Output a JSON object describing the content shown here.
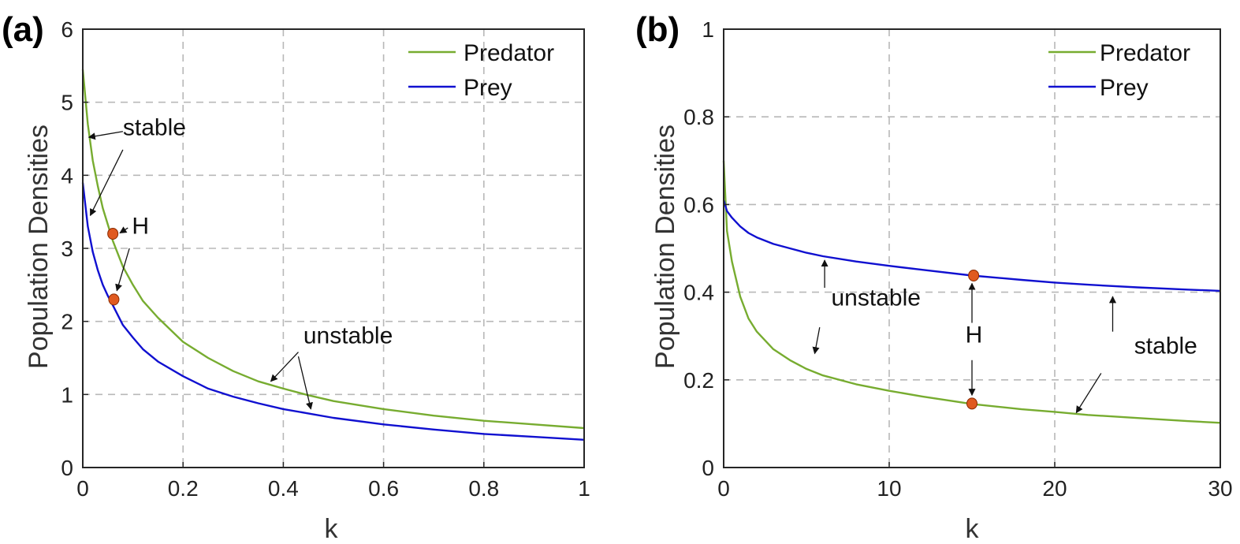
{
  "colors": {
    "predator": "#77ac30",
    "prey": "#1010d0",
    "hopf": "#e05a20",
    "hopf_edge": "#8a2a00"
  },
  "chart_data": [
    {
      "type": "line",
      "panel_label": "(a)",
      "xlabel": "k",
      "ylabel": "Population Densities",
      "xlim": [
        0,
        1
      ],
      "ylim": [
        0,
        6
      ],
      "xticks": [
        0,
        0.2,
        0.4,
        0.6,
        0.8,
        1
      ],
      "xtick_labels": [
        "0",
        "0.2",
        "0.4",
        "0.6",
        "0.8",
        "1"
      ],
      "yticks": [
        0,
        1,
        2,
        3,
        4,
        5,
        6
      ],
      "ytick_labels": [
        "0",
        "1",
        "2",
        "3",
        "4",
        "5",
        "6"
      ],
      "grid": true,
      "legend_position": "top-right",
      "series": [
        {
          "name": "Predator",
          "color_key": "predator",
          "x": [
            0,
            0.01,
            0.02,
            0.03,
            0.04,
            0.06,
            0.08,
            0.1,
            0.12,
            0.15,
            0.2,
            0.25,
            0.3,
            0.35,
            0.4,
            0.45,
            0.5,
            0.6,
            0.7,
            0.8,
            0.9,
            1.0
          ],
          "y": [
            5.45,
            4.7,
            4.2,
            3.85,
            3.55,
            3.1,
            2.75,
            2.5,
            2.28,
            2.05,
            1.72,
            1.5,
            1.32,
            1.18,
            1.08,
            0.99,
            0.91,
            0.8,
            0.71,
            0.64,
            0.59,
            0.54
          ]
        },
        {
          "name": "Prey",
          "color_key": "prey",
          "x": [
            0,
            0.01,
            0.02,
            0.03,
            0.04,
            0.05,
            0.06,
            0.08,
            0.1,
            0.12,
            0.15,
            0.2,
            0.25,
            0.3,
            0.35,
            0.4,
            0.45,
            0.5,
            0.6,
            0.7,
            0.8,
            0.9,
            1.0
          ],
          "y": [
            3.9,
            3.3,
            2.95,
            2.7,
            2.5,
            2.35,
            2.22,
            1.95,
            1.78,
            1.62,
            1.45,
            1.25,
            1.08,
            0.97,
            0.88,
            0.8,
            0.74,
            0.68,
            0.59,
            0.52,
            0.46,
            0.42,
            0.38
          ]
        }
      ],
      "hopf_points": [
        {
          "x": 0.06,
          "y": 3.2
        },
        {
          "x": 0.062,
          "y": 2.3
        }
      ],
      "annotations": [
        {
          "text": "stable",
          "x": 0.08,
          "y": 4.55,
          "arrows": [
            {
              "from": [
                0.08,
                4.6
              ],
              "to": [
                0.012,
                4.52
              ]
            },
            {
              "from": [
                0.08,
                4.35
              ],
              "to": [
                0.015,
                3.45
              ]
            }
          ]
        },
        {
          "text": "H",
          "x": 0.098,
          "y": 3.2,
          "arrows": [
            {
              "from": [
                0.09,
                3.28
              ],
              "to": [
                0.074,
                3.21
              ]
            },
            {
              "from": [
                0.093,
                3.0
              ],
              "to": [
                0.068,
                2.42
              ]
            }
          ]
        },
        {
          "text": "unstable",
          "x": 0.44,
          "y": 1.7,
          "arrows": [
            {
              "from": [
                0.43,
                1.58
              ],
              "to": [
                0.375,
                1.18
              ]
            },
            {
              "from": [
                0.43,
                1.52
              ],
              "to": [
                0.455,
                0.8
              ]
            }
          ]
        }
      ]
    },
    {
      "type": "line",
      "panel_label": "(b)",
      "xlabel": "k",
      "ylabel": "Population Densities",
      "xlim": [
        0,
        30
      ],
      "ylim": [
        0,
        1
      ],
      "xticks": [
        0,
        10,
        20,
        30
      ],
      "xtick_labels": [
        "0",
        "10",
        "20",
        "30"
      ],
      "yticks": [
        0,
        0.2,
        0.4,
        0.6,
        0.8,
        1
      ],
      "ytick_labels": [
        "0",
        "0.2",
        "0.4",
        "0.6",
        "0.8",
        "1"
      ],
      "grid": true,
      "legend_position": "top-right",
      "series": [
        {
          "name": "Predator",
          "color_key": "predator",
          "x": [
            0,
            0.2,
            0.5,
            1,
            1.5,
            2,
            3,
            4,
            5,
            6,
            8,
            10,
            12,
            15,
            18,
            20,
            22,
            25,
            28,
            30
          ],
          "y": [
            0.7,
            0.54,
            0.47,
            0.39,
            0.34,
            0.31,
            0.27,
            0.245,
            0.225,
            0.21,
            0.19,
            0.175,
            0.162,
            0.145,
            0.133,
            0.127,
            0.12,
            0.113,
            0.106,
            0.102
          ]
        },
        {
          "name": "Prey",
          "color_key": "prey",
          "x": [
            0,
            0.2,
            0.5,
            1,
            1.5,
            2,
            3,
            4,
            5,
            6,
            8,
            10,
            12,
            15,
            18,
            20,
            22,
            25,
            28,
            30
          ],
          "y": [
            0.61,
            0.585,
            0.57,
            0.55,
            0.535,
            0.525,
            0.51,
            0.5,
            0.49,
            0.482,
            0.47,
            0.46,
            0.451,
            0.438,
            0.428,
            0.422,
            0.417,
            0.411,
            0.406,
            0.403
          ]
        }
      ],
      "hopf_points": [
        {
          "x": 15.1,
          "y": 0.438
        },
        {
          "x": 15,
          "y": 0.146
        }
      ],
      "annotations": [
        {
          "text": "unstable",
          "x": 6.5,
          "y": 0.37,
          "arrows": [
            {
              "from": [
                6.1,
                0.41
              ],
              "to": [
                6.1,
                0.473
              ]
            },
            {
              "from": [
                5.8,
                0.32
              ],
              "to": [
                5.5,
                0.26
              ]
            }
          ]
        },
        {
          "text": "H",
          "x": 14.6,
          "y": 0.285,
          "arrows": [
            {
              "from": [
                15.0,
                0.33
              ],
              "to": [
                15.0,
                0.42
              ]
            },
            {
              "from": [
                15.0,
                0.245
              ],
              "to": [
                15.0,
                0.165
              ]
            }
          ]
        },
        {
          "text": "stable",
          "x": 24.8,
          "y": 0.26,
          "arrows": [
            {
              "from": [
                23.5,
                0.31
              ],
              "to": [
                23.5,
                0.39
              ]
            },
            {
              "from": [
                22.8,
                0.215
              ],
              "to": [
                21.3,
                0.125
              ]
            }
          ]
        }
      ]
    }
  ]
}
